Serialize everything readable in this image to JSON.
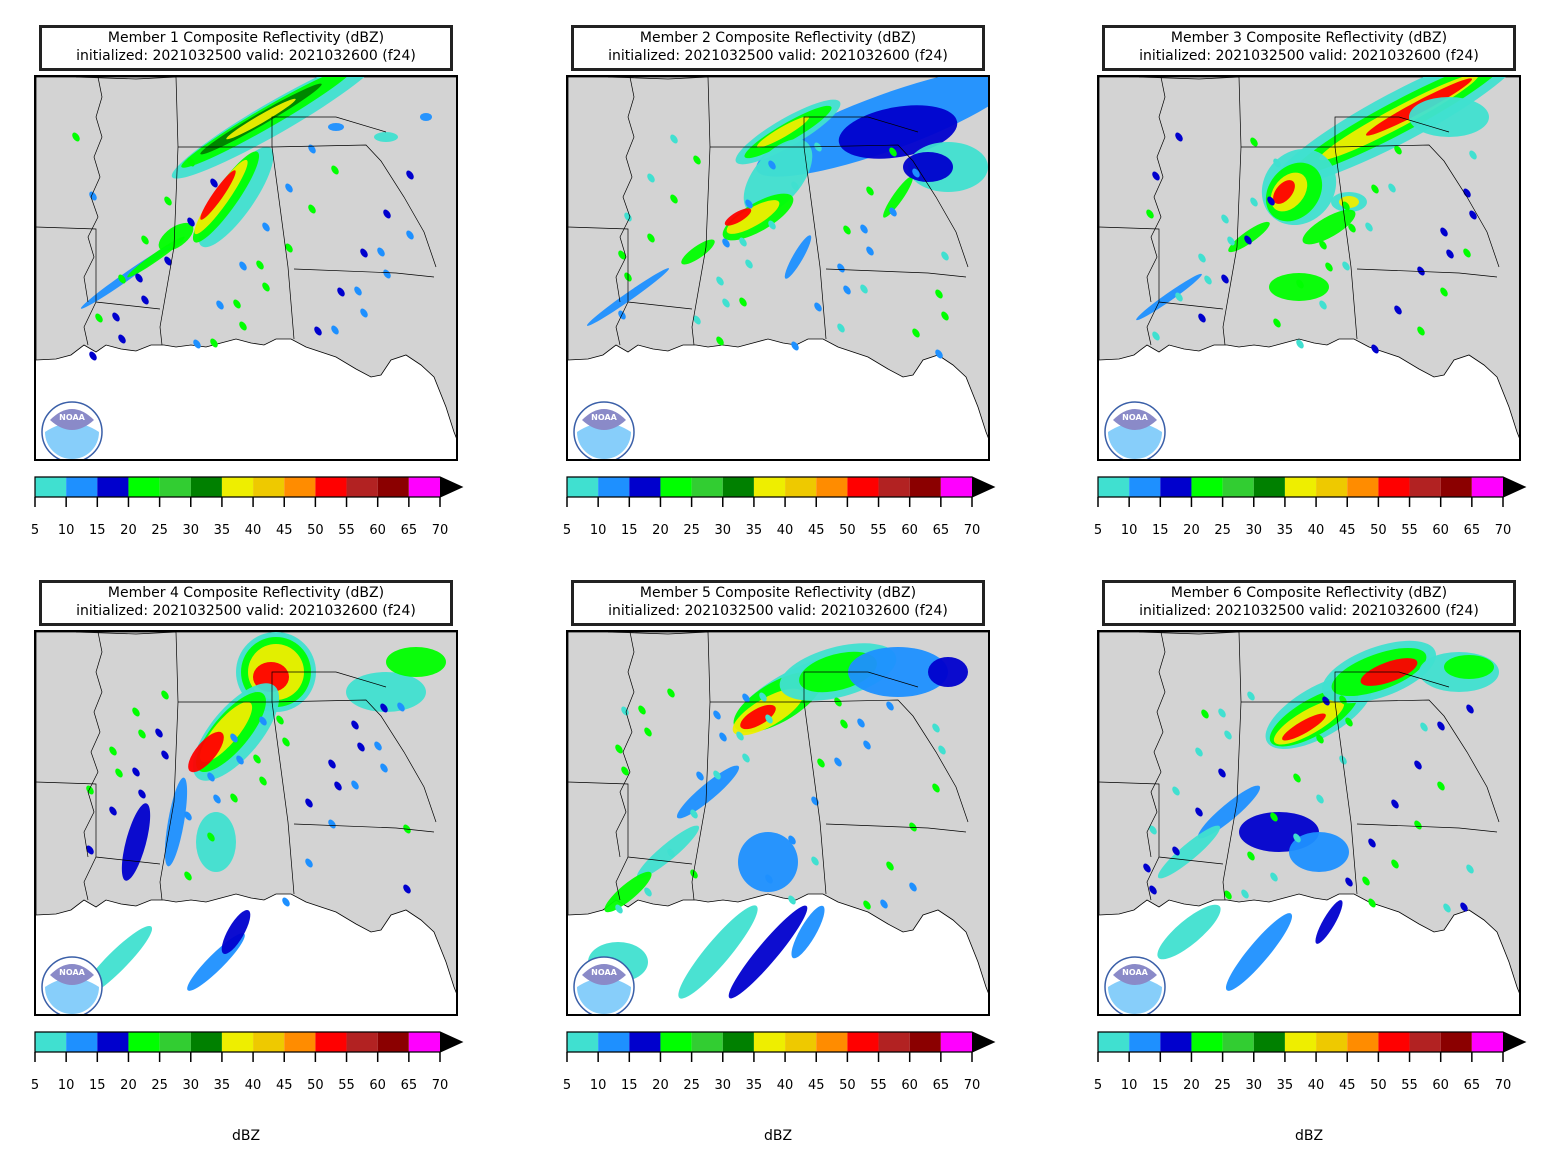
{
  "panels": [
    {
      "title": "Member 1 Composite Reflectivity (dBZ)",
      "subtitle": "initialized: 2021032500 valid: 2021032600 (f24)",
      "show_label": false
    },
    {
      "title": "Member 2 Composite Reflectivity (dBZ)",
      "subtitle": "initialized: 2021032500 valid: 2021032600 (f24)",
      "show_label": false
    },
    {
      "title": "Member 3 Composite Reflectivity (dBZ)",
      "subtitle": "initialized: 2021032500 valid: 2021032600 (f24)",
      "show_label": false
    },
    {
      "title": "Member 4 Composite Reflectivity (dBZ)",
      "subtitle": "initialized: 2021032500 valid: 2021032600 (f24)",
      "show_label": true
    },
    {
      "title": "Member 5 Composite Reflectivity (dBZ)",
      "subtitle": "initialized: 2021032500 valid: 2021032600 (f24)",
      "show_label": true
    },
    {
      "title": "Member 6 Composite Reflectivity (dBZ)",
      "subtitle": "initialized: 2021032500 valid: 2021032600 (f24)",
      "show_label": true
    }
  ],
  "colorbar": {
    "ticks": [
      "5",
      "10",
      "15",
      "20",
      "25",
      "30",
      "35",
      "40",
      "45",
      "50",
      "55",
      "60",
      "65",
      "70"
    ],
    "colors": [
      "#40e0d0",
      "#1e90ff",
      "#0000cd",
      "#00ff00",
      "#32cd32",
      "#008000",
      "#eeee00",
      "#eec900",
      "#ff8c00",
      "#ff0000",
      "#b22222",
      "#8b0000",
      "#ff00ff"
    ],
    "extend_color": "#000000",
    "label": "dBZ"
  },
  "map": {
    "land_color": "#d3d3d3",
    "water_color": "#ffffff",
    "border_color": "#000000",
    "logo": {
      "text": "NOAA",
      "icon": "noaa-logo-icon"
    }
  }
}
